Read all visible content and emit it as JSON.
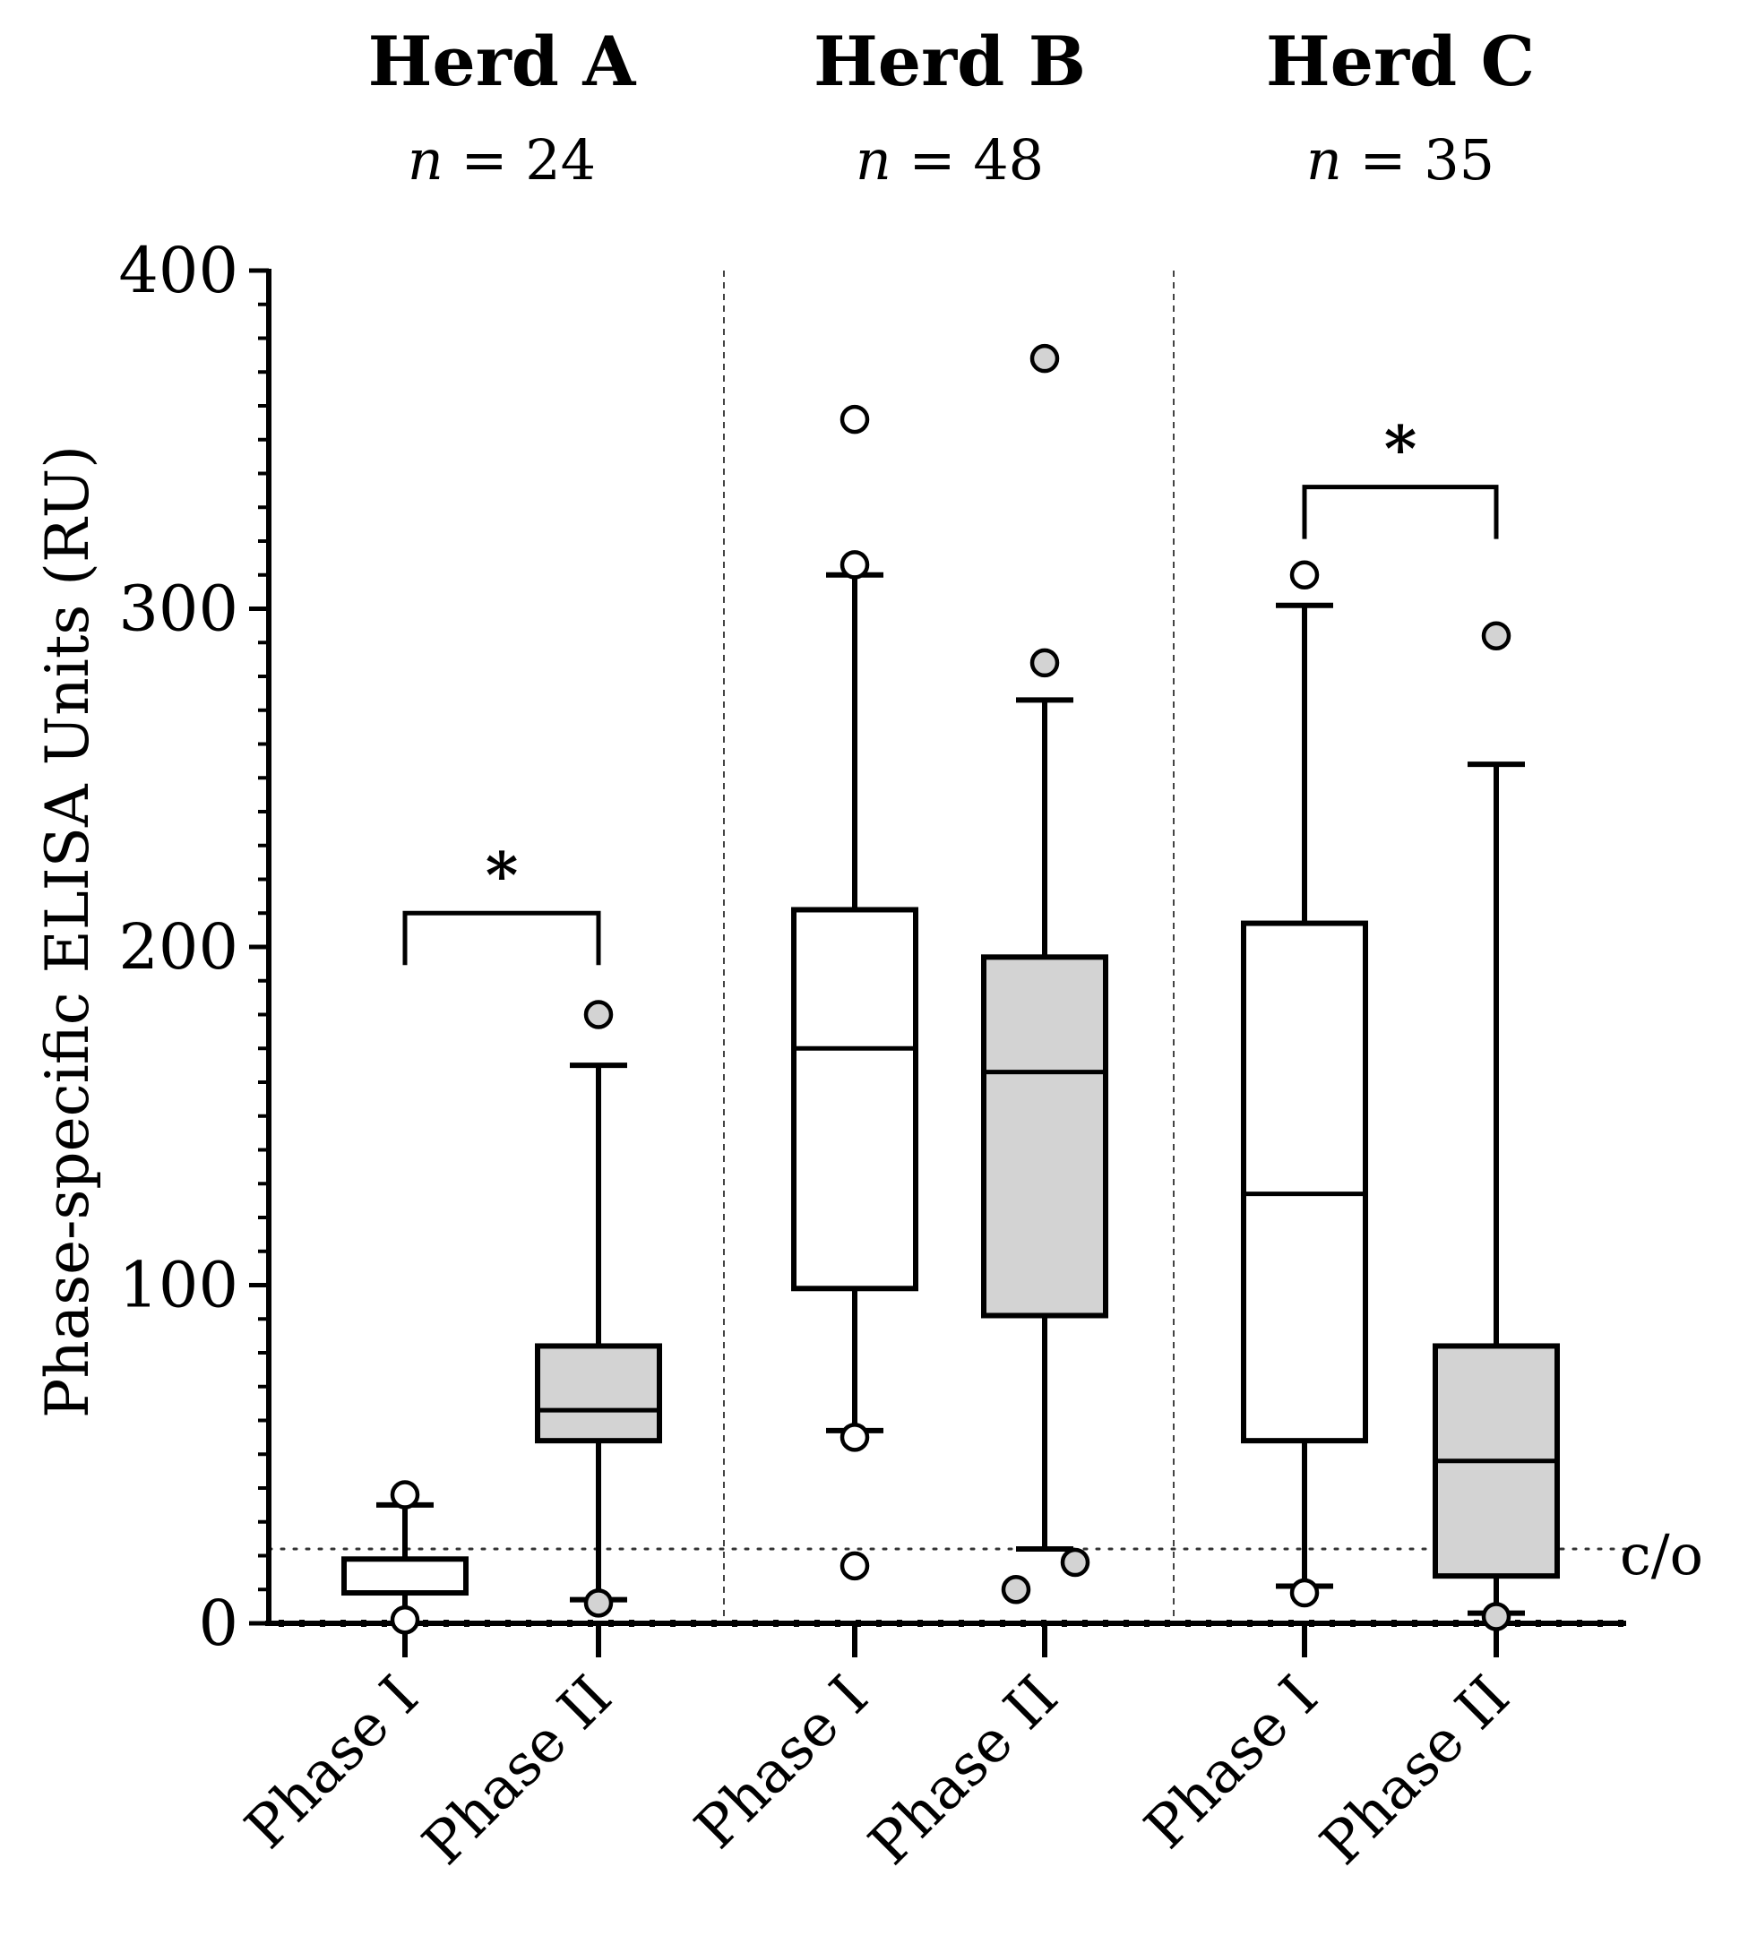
{
  "chart_data": {
    "type": "box",
    "ylabel": "Phase-specific ELISA Units (RU)",
    "ylim": [
      0,
      400
    ],
    "yticks": [
      0,
      100,
      200,
      300,
      400
    ],
    "cutoff": {
      "value": 22,
      "label": "c/o"
    },
    "colors": {
      "phase_I": "#ffffff",
      "phase_II": "#d3d3d3",
      "line": "#000000"
    },
    "groups": [
      {
        "name": "Herd A",
        "n_prefix": "n",
        "n_text": " = 24",
        "significance": "*",
        "sig_bracket_value": 210,
        "boxes": [
          {
            "label": "Phase I",
            "q1": 9,
            "median": 9,
            "q3": 19,
            "whisker_low": 0,
            "whisker_high": 35,
            "outliers": [
              38,
              1
            ]
          },
          {
            "label": "Phase II",
            "q1": 54,
            "median": 63,
            "q3": 82,
            "whisker_low": 7,
            "whisker_high": 165,
            "outliers": [
              180,
              6
            ]
          }
        ]
      },
      {
        "name": "Herd B",
        "n_prefix": "n",
        "n_text": " = 48",
        "significance": "",
        "boxes": [
          {
            "label": "Phase I",
            "q1": 99,
            "median": 170,
            "q3": 211,
            "whisker_low": 57,
            "whisker_high": 310,
            "outliers": [
              356,
              313,
              55,
              17
            ]
          },
          {
            "label": "Phase II",
            "q1": 91,
            "median": 163,
            "q3": 197,
            "whisker_low": 22,
            "whisker_high": 273,
            "outliers": [
              374,
              284,
              10,
              18
            ]
          }
        ]
      },
      {
        "name": "Herd C",
        "n_prefix": "n",
        "n_text": " = 35",
        "significance": "*",
        "sig_bracket_value": 336,
        "boxes": [
          {
            "label": "Phase I",
            "q1": 54,
            "median": 127,
            "q3": 207,
            "whisker_low": 11,
            "whisker_high": 301,
            "outliers": [
              310,
              9
            ]
          },
          {
            "label": "Phase II",
            "q1": 14,
            "median": 48,
            "q3": 82,
            "whisker_low": 3,
            "whisker_high": 254,
            "outliers": [
              292,
              2
            ]
          }
        ]
      }
    ]
  }
}
